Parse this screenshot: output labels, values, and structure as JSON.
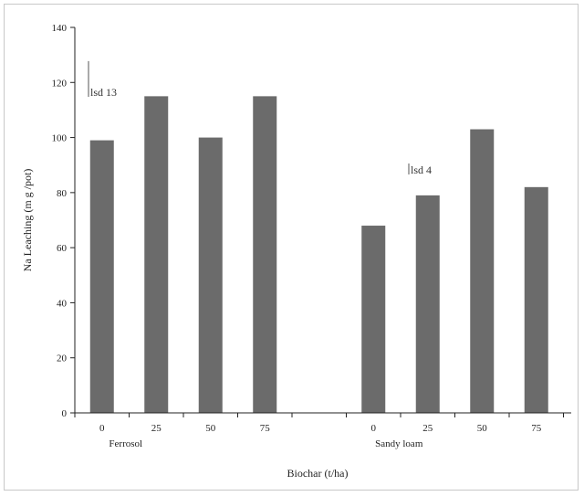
{
  "chart_data": {
    "type": "bar",
    "ylabel": "Na Leaching (m g /pot)",
    "xlabel": "Biochar (t/ha)",
    "ylim": [
      0,
      140
    ],
    "yticks": [
      0,
      20,
      40,
      60,
      80,
      100,
      120,
      140
    ],
    "color": "#6b6b6b",
    "groups": [
      {
        "name": "Ferrosol",
        "categories": [
          "0",
          "25",
          "50",
          "75"
        ],
        "values": [
          99,
          115,
          100,
          115
        ],
        "lsd": {
          "label": "lsd 13",
          "value": 13
        }
      },
      {
        "name": "Sandy loam",
        "categories": [
          "0",
          "25",
          "50",
          "75"
        ],
        "values": [
          68,
          79,
          103,
          82
        ],
        "lsd": {
          "label": "lsd 4",
          "value": 4
        }
      }
    ]
  }
}
